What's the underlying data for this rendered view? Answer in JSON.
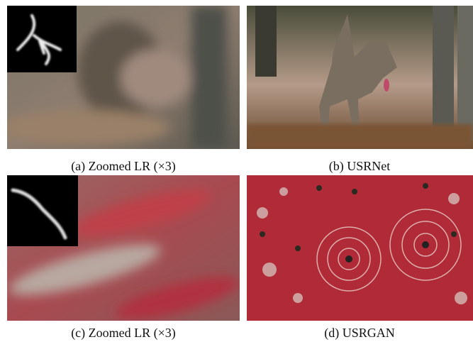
{
  "panels": [
    {
      "caption": "(a) Zoomed LR (×3)"
    },
    {
      "caption": "(b) USRNet"
    },
    {
      "caption": "(c) Zoomed LR (×3)"
    },
    {
      "caption": "(d) USRGAN"
    }
  ]
}
